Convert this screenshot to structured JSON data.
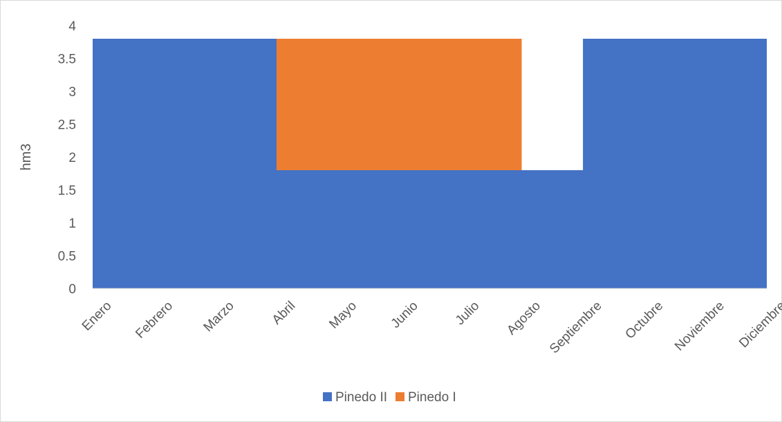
{
  "chart_data": {
    "type": "area",
    "stacked": true,
    "categories": [
      "Enero",
      "Febrero",
      "Marzo",
      "Abril",
      "Mayo",
      "Junio",
      "Julio",
      "Agosto",
      "Septiembre",
      "Octubre",
      "Noviembre",
      "Diciembre"
    ],
    "series": [
      {
        "name": "Pinedo II",
        "color": "#4472C4",
        "values": [
          3.8,
          3.8,
          3.8,
          3.8,
          1.8,
          1.8,
          1.8,
          1.8,
          3.8,
          3.8,
          3.8,
          3.8
        ]
      },
      {
        "name": "Pinedo I",
        "color": "#ED7D31",
        "values": [
          0,
          0,
          0,
          0,
          2.0,
          2.0,
          2.0,
          2.0,
          0,
          0,
          0,
          0
        ]
      }
    ],
    "title": "",
    "xlabel": "",
    "ylabel": "hm3",
    "ylim": [
      0,
      4
    ],
    "yticks": [
      "0",
      "0.5",
      "1",
      "1.5",
      "2",
      "2.5",
      "3",
      "3.5",
      "4"
    ],
    "grid": false,
    "legend": "bottom"
  }
}
